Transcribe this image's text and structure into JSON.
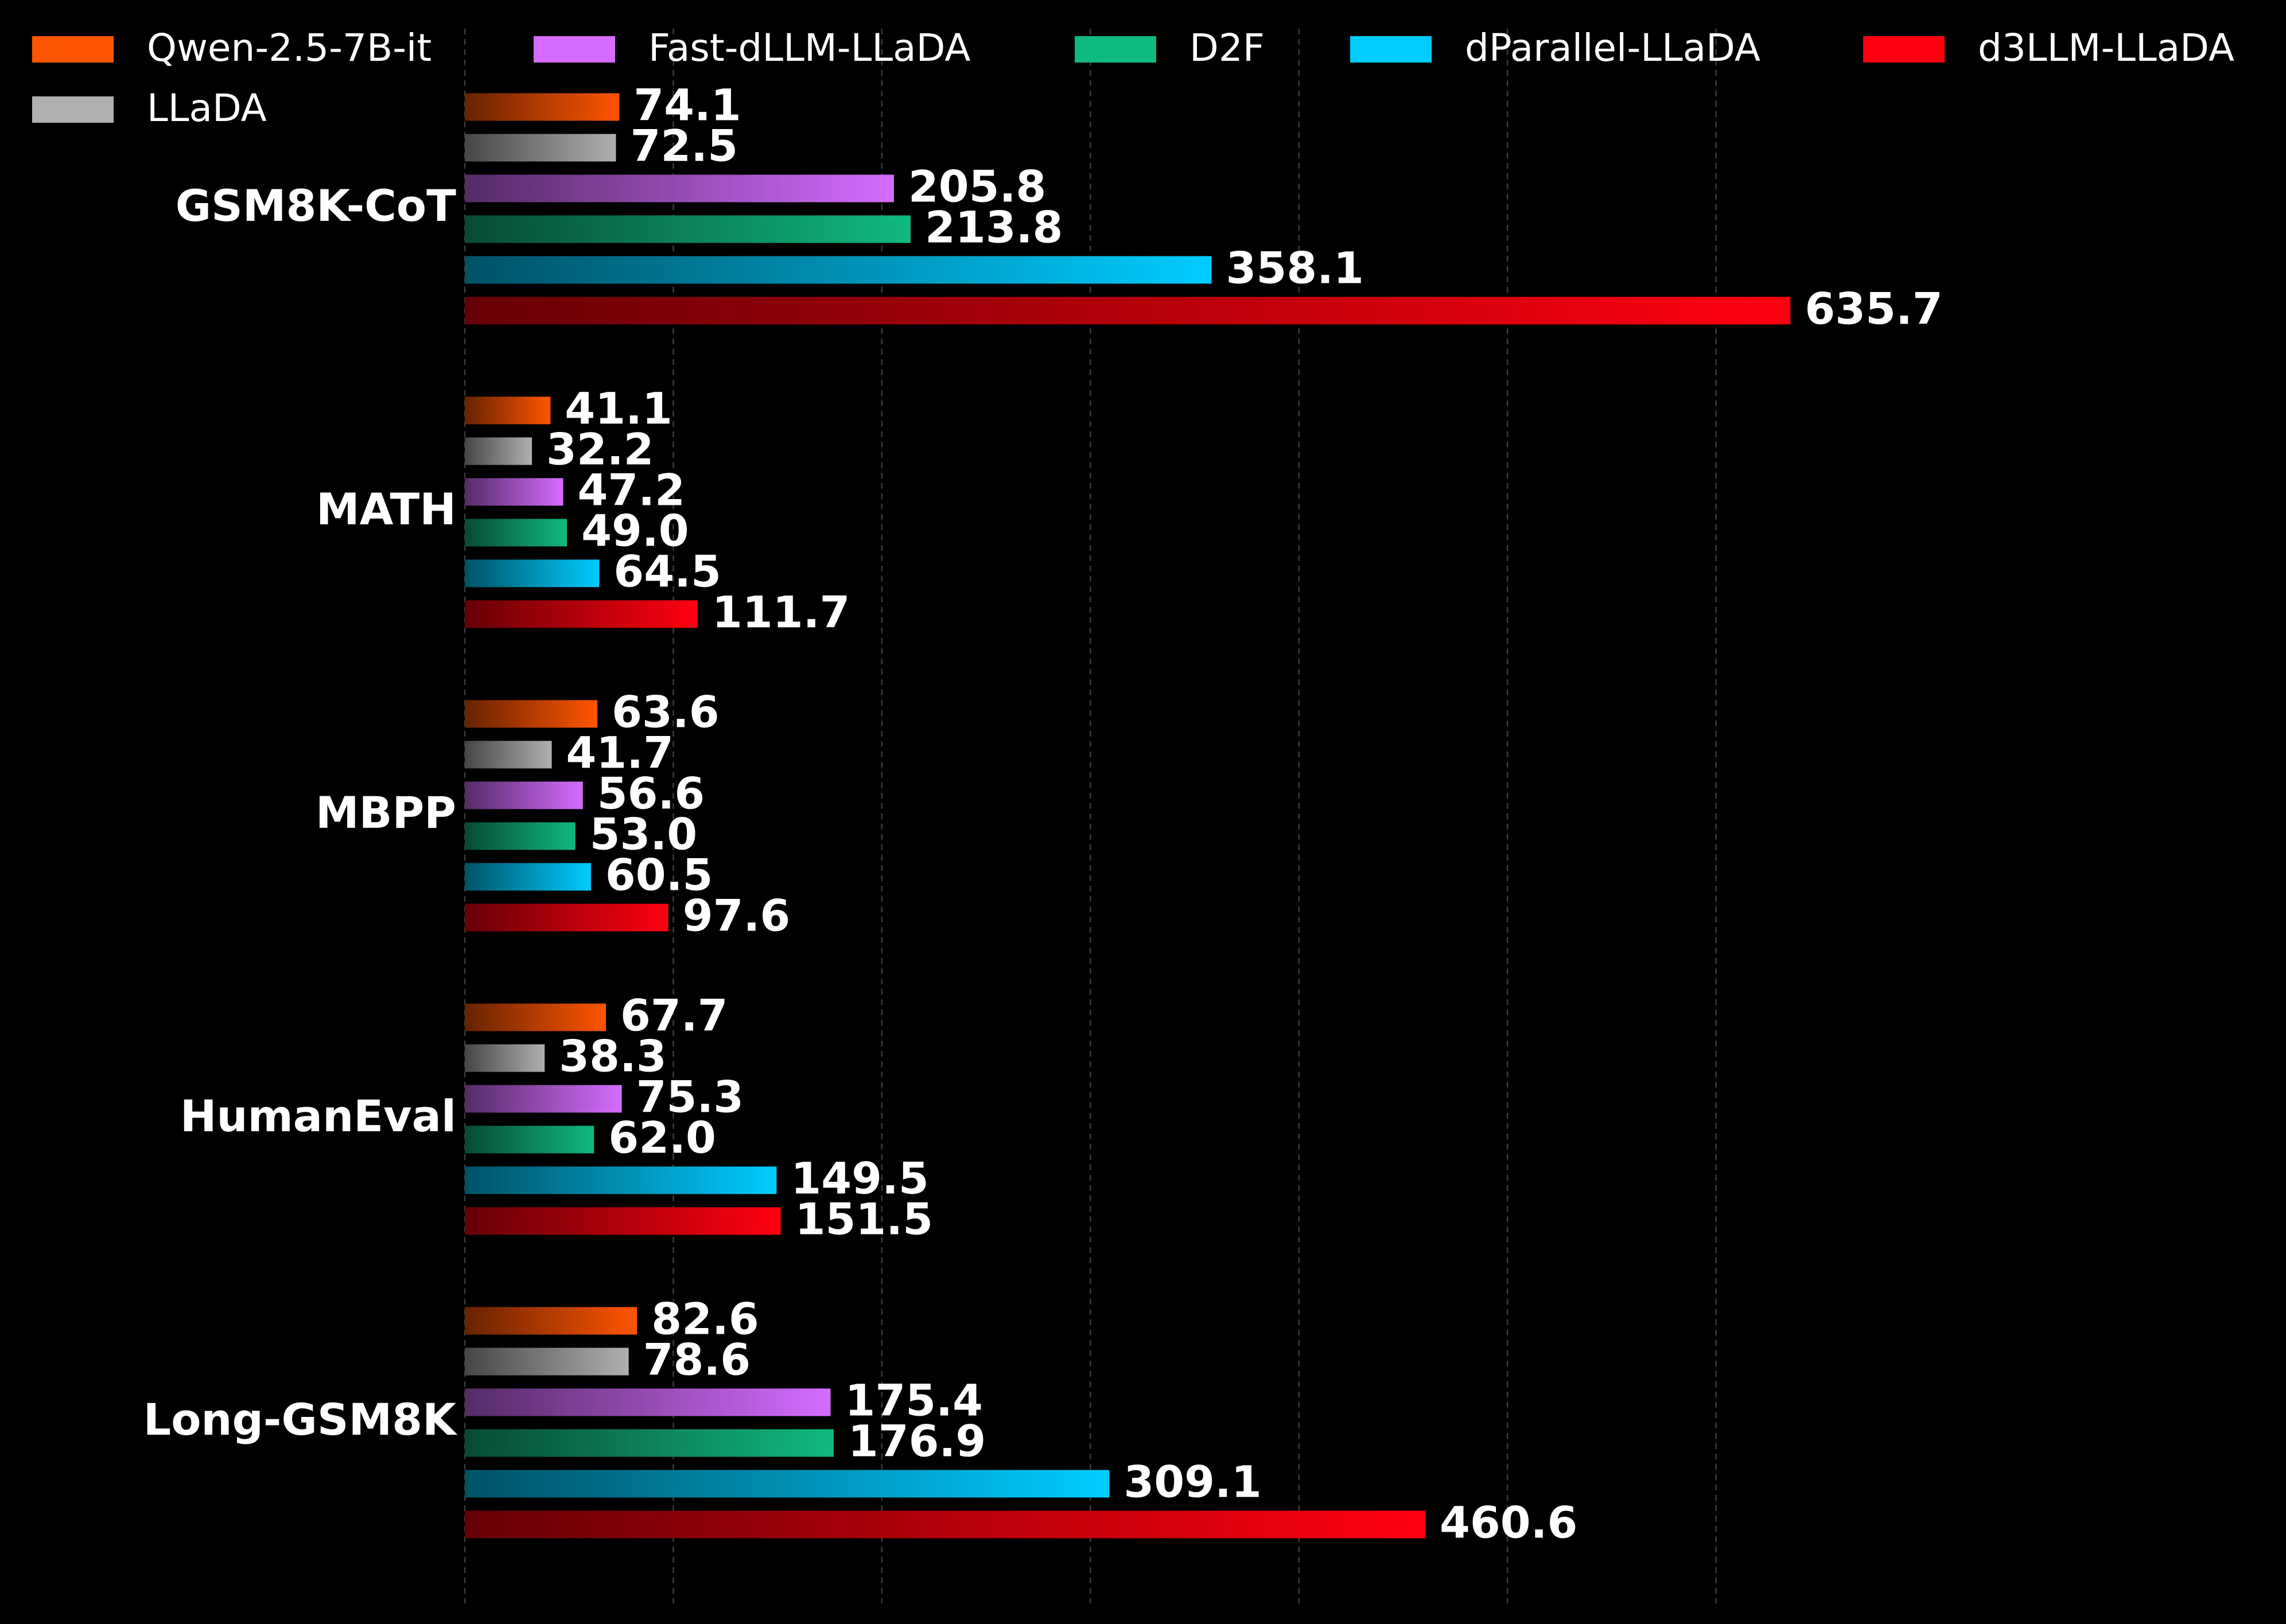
{
  "chart_data": {
    "type": "hbar",
    "categories": [
      "GSM8K-CoT",
      "MATH",
      "MBPP",
      "HumanEval",
      "Long-GSM8K"
    ],
    "series": [
      {
        "name": "Qwen-2.5-7B-it",
        "color": "#ff5500",
        "values": [
          74.1,
          41.1,
          63.6,
          67.7,
          82.6
        ],
        "value_labels": [
          "74.1",
          "41.1",
          "63.6",
          "67.7",
          "82.6"
        ]
      },
      {
        "name": "LLaDA",
        "color": "#b0b0b0",
        "values": [
          72.5,
          32.2,
          41.7,
          38.3,
          78.6
        ],
        "value_labels": [
          "72.5",
          "32.2",
          "41.7",
          "38.3",
          "78.6"
        ]
      },
      {
        "name": "Fast-dLLM-LLaDA",
        "color": "#d56cff",
        "values": [
          205.8,
          47.2,
          56.6,
          75.3,
          175.4
        ],
        "value_labels": [
          "205.8",
          "47.2",
          "56.6",
          "75.3",
          "175.4"
        ]
      },
      {
        "name": "D2F",
        "color": "#10b981",
        "values": [
          213.8,
          49.0,
          53.0,
          62.0,
          176.9
        ],
        "value_labels": [
          "213.8",
          "49.0",
          "53.0",
          "62.0",
          "176.9"
        ]
      },
      {
        "name": "dParallel-LLaDA",
        "color": "#00ccff",
        "values": [
          358.1,
          64.5,
          60.5,
          149.5,
          309.1
        ],
        "value_labels": [
          "358.1",
          "64.5",
          "60.5",
          "149.5",
          "309.1"
        ]
      },
      {
        "name": "d3LLM-LLaDA",
        "color": "#ff0010",
        "values": [
          635.7,
          111.7,
          97.6,
          151.5,
          460.6
        ],
        "value_labels": [
          "635.7",
          "111.7",
          "97.6",
          "151.5",
          "460.6"
        ]
      }
    ],
    "xlim": [
      0,
      700
    ],
    "xticks": [
      0,
      100,
      200,
      300,
      400,
      500,
      600
    ],
    "grid": true
  }
}
